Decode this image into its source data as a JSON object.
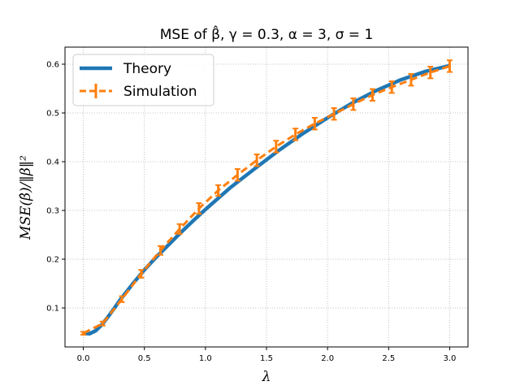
{
  "chart_data": {
    "type": "line",
    "title": "MSE of β̂, γ = 0.3, α = 3, σ = 1",
    "xlabel": "λ",
    "ylabel": "MSE(β̂)/‖β‖²",
    "xlim": [
      -0.15,
      3.15
    ],
    "ylim": [
      0.02,
      0.635
    ],
    "xticks": [
      0.0,
      0.5,
      1.0,
      1.5,
      2.0,
      2.5,
      3.0
    ],
    "xtick_labels": [
      "0.0",
      "0.5",
      "1.0",
      "1.5",
      "2.0",
      "2.5",
      "3.0"
    ],
    "yticks": [
      0.1,
      0.2,
      0.3,
      0.4,
      0.5,
      0.6
    ],
    "ytick_labels": [
      "0.1",
      "0.2",
      "0.3",
      "0.4",
      "0.5",
      "0.6"
    ],
    "grid": true,
    "legend_position": "top-left",
    "series": [
      {
        "name": "Theory",
        "style": "solid line",
        "color": "#1f77b4",
        "x": [
          0.0,
          0.05,
          0.1,
          0.15,
          0.2,
          0.25,
          0.3,
          0.4,
          0.5,
          0.6,
          0.7,
          0.8,
          0.9,
          1.0,
          1.2,
          1.4,
          1.6,
          1.8,
          2.0,
          2.2,
          2.4,
          2.6,
          2.8,
          3.0
        ],
        "y": [
          0.048,
          0.047,
          0.053,
          0.065,
          0.081,
          0.098,
          0.116,
          0.148,
          0.178,
          0.205,
          0.23,
          0.255,
          0.279,
          0.302,
          0.346,
          0.385,
          0.423,
          0.458,
          0.49,
          0.52,
          0.546,
          0.568,
          0.585,
          0.597
        ]
      },
      {
        "name": "Simulation",
        "style": "dashed line with error bars",
        "color": "#ff7f0e",
        "x": [
          0.0,
          0.158,
          0.316,
          0.474,
          0.632,
          0.789,
          0.947,
          1.105,
          1.263,
          1.421,
          1.579,
          1.737,
          1.895,
          2.053,
          2.211,
          2.368,
          2.526,
          2.684,
          2.842,
          3.0
        ],
        "y": [
          0.048,
          0.068,
          0.118,
          0.17,
          0.218,
          0.262,
          0.304,
          0.341,
          0.373,
          0.403,
          0.431,
          0.456,
          0.478,
          0.498,
          0.518,
          0.537,
          0.553,
          0.568,
          0.583,
          0.596
        ],
        "yerr": [
          0.003,
          0.004,
          0.006,
          0.008,
          0.009,
          0.01,
          0.011,
          0.011,
          0.012,
          0.012,
          0.012,
          0.012,
          0.012,
          0.012,
          0.012,
          0.012,
          0.012,
          0.012,
          0.012,
          0.012
        ]
      }
    ]
  },
  "colors": {
    "theory": "#1f77b4",
    "simulation": "#ff7f0e",
    "grid": "#b0b0b0"
  }
}
